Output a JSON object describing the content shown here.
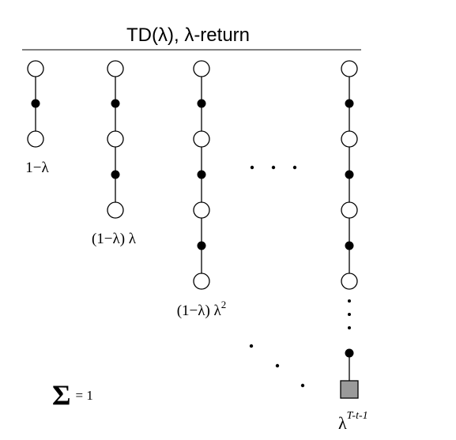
{
  "title": "TD(λ), λ-return",
  "backups": [
    {
      "label": "1−λ",
      "superscript": ""
    },
    {
      "label": "(1−λ) λ",
      "superscript": ""
    },
    {
      "label": "(1−λ) λ",
      "superscript": "2"
    },
    {
      "label": "λ",
      "superscript": "T-t-1"
    }
  ],
  "sum": {
    "symbol": "Σ",
    "text": "= 1"
  }
}
